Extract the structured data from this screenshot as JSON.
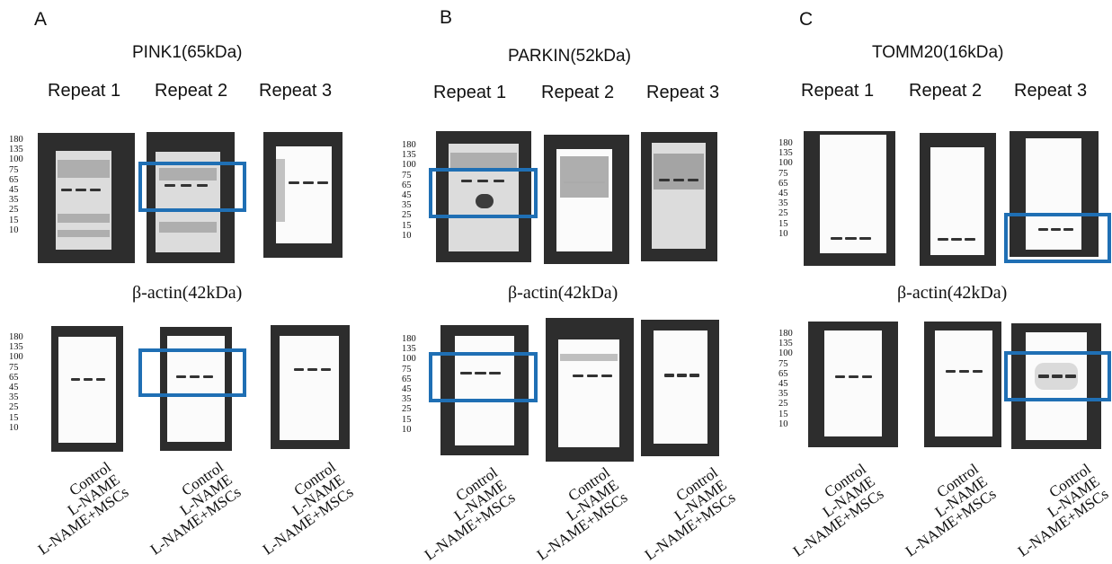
{
  "ladder": [
    "180",
    "135",
    "100",
    "75",
    "65",
    "45",
    "35",
    "25",
    "15",
    "10"
  ],
  "lanes": [
    "Control",
    "L-NAME",
    "L-NAME+MSCs"
  ],
  "panels": {
    "A": {
      "letter": "A",
      "protein": "PINK1(65kDa)",
      "actin": "β-actin(42kDa)",
      "repeats": [
        "Repeat 1",
        "Repeat 2",
        "Repeat 3"
      ]
    },
    "B": {
      "letter": "B",
      "protein": "PARKIN(52kDa)",
      "actin": "β-actin(42kDa)",
      "repeats": [
        "Repeat 1",
        "Repeat 2",
        "Repeat 3"
      ]
    },
    "C": {
      "letter": "C",
      "protein": "TOMM20(16kDa)",
      "actin": "β-actin(42kDa)",
      "repeats": [
        "Repeat 1",
        "Repeat 2",
        "Repeat 3"
      ]
    }
  },
  "colors": {
    "highlight": "#1f6fb4",
    "blot_background": "#2d2d2d"
  }
}
